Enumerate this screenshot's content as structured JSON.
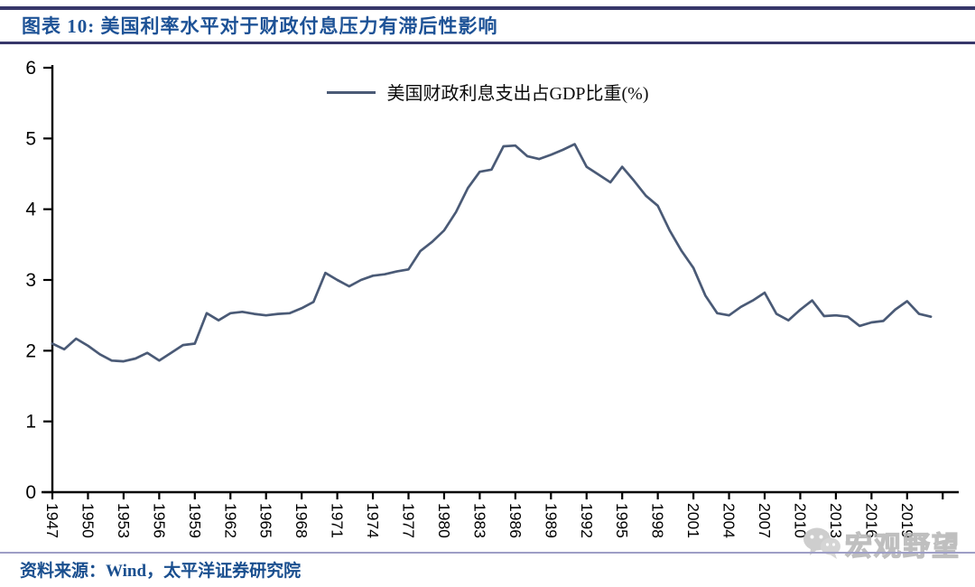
{
  "header": {
    "title": "图表 10:  美国利率水平对于财政付息压力有滞后性影响"
  },
  "chart_data": {
    "type": "line",
    "legend": [
      "美国财政利息支出占GDP比重(%)"
    ],
    "legend_position": "top-center",
    "line_color": "#4a5a76",
    "grid": false,
    "ylim": [
      0,
      6
    ],
    "yticks": [
      0,
      1,
      2,
      3,
      4,
      5,
      6
    ],
    "xticks": [
      1947,
      1950,
      1953,
      1956,
      1959,
      1962,
      1965,
      1968,
      1971,
      1974,
      1977,
      1980,
      1983,
      1986,
      1989,
      1992,
      1995,
      1998,
      2001,
      2004,
      2007,
      2010,
      2013,
      2016,
      2019
    ],
    "x": [
      1947,
      1948,
      1949,
      1950,
      1951,
      1952,
      1953,
      1954,
      1955,
      1956,
      1957,
      1958,
      1959,
      1960,
      1961,
      1962,
      1963,
      1964,
      1965,
      1966,
      1967,
      1968,
      1969,
      1970,
      1971,
      1972,
      1973,
      1974,
      1975,
      1976,
      1977,
      1978,
      1979,
      1980,
      1981,
      1982,
      1983,
      1984,
      1985,
      1986,
      1987,
      1988,
      1989,
      1990,
      1991,
      1992,
      1993,
      1994,
      1995,
      1996,
      1997,
      1998,
      1999,
      2000,
      2001,
      2002,
      2003,
      2004,
      2005,
      2006,
      2007,
      2008,
      2009,
      2010,
      2011,
      2012,
      2013,
      2014,
      2015,
      2016,
      2017,
      2018,
      2019,
      2020,
      2021
    ],
    "series": [
      {
        "name": "美国财政利息支出占GDP比重(%)",
        "values": [
          2.1,
          2.02,
          2.17,
          2.07,
          1.95,
          1.86,
          1.85,
          1.89,
          1.97,
          1.86,
          1.97,
          2.08,
          2.1,
          2.53,
          2.43,
          2.53,
          2.55,
          2.52,
          2.5,
          2.52,
          2.53,
          2.6,
          2.69,
          3.1,
          3.0,
          2.91,
          3.0,
          3.06,
          3.08,
          3.12,
          3.15,
          3.41,
          3.54,
          3.7,
          3.96,
          4.3,
          4.53,
          4.56,
          4.89,
          4.9,
          4.75,
          4.71,
          4.77,
          4.84,
          4.92,
          4.6,
          4.49,
          4.38,
          4.6,
          4.4,
          4.19,
          4.05,
          3.7,
          3.41,
          3.17,
          2.78,
          2.53,
          2.5,
          2.62,
          2.71,
          2.82,
          2.52,
          2.43,
          2.58,
          2.71,
          2.49,
          2.5,
          2.48,
          2.35,
          2.4,
          2.42,
          2.58,
          2.7,
          2.52,
          2.48
        ]
      }
    ]
  },
  "watermark": {
    "icon": "wechat-icon",
    "text": "宏观野望"
  },
  "footer": {
    "source": "资料来源：Wind，太平洋证券研究院"
  },
  "colors": {
    "title_blue": "#1d5296",
    "rule_navy": "#37376a",
    "rule_light": "#9e9ec6",
    "axis_black": "#000000",
    "series_line": "#4a5a76"
  }
}
